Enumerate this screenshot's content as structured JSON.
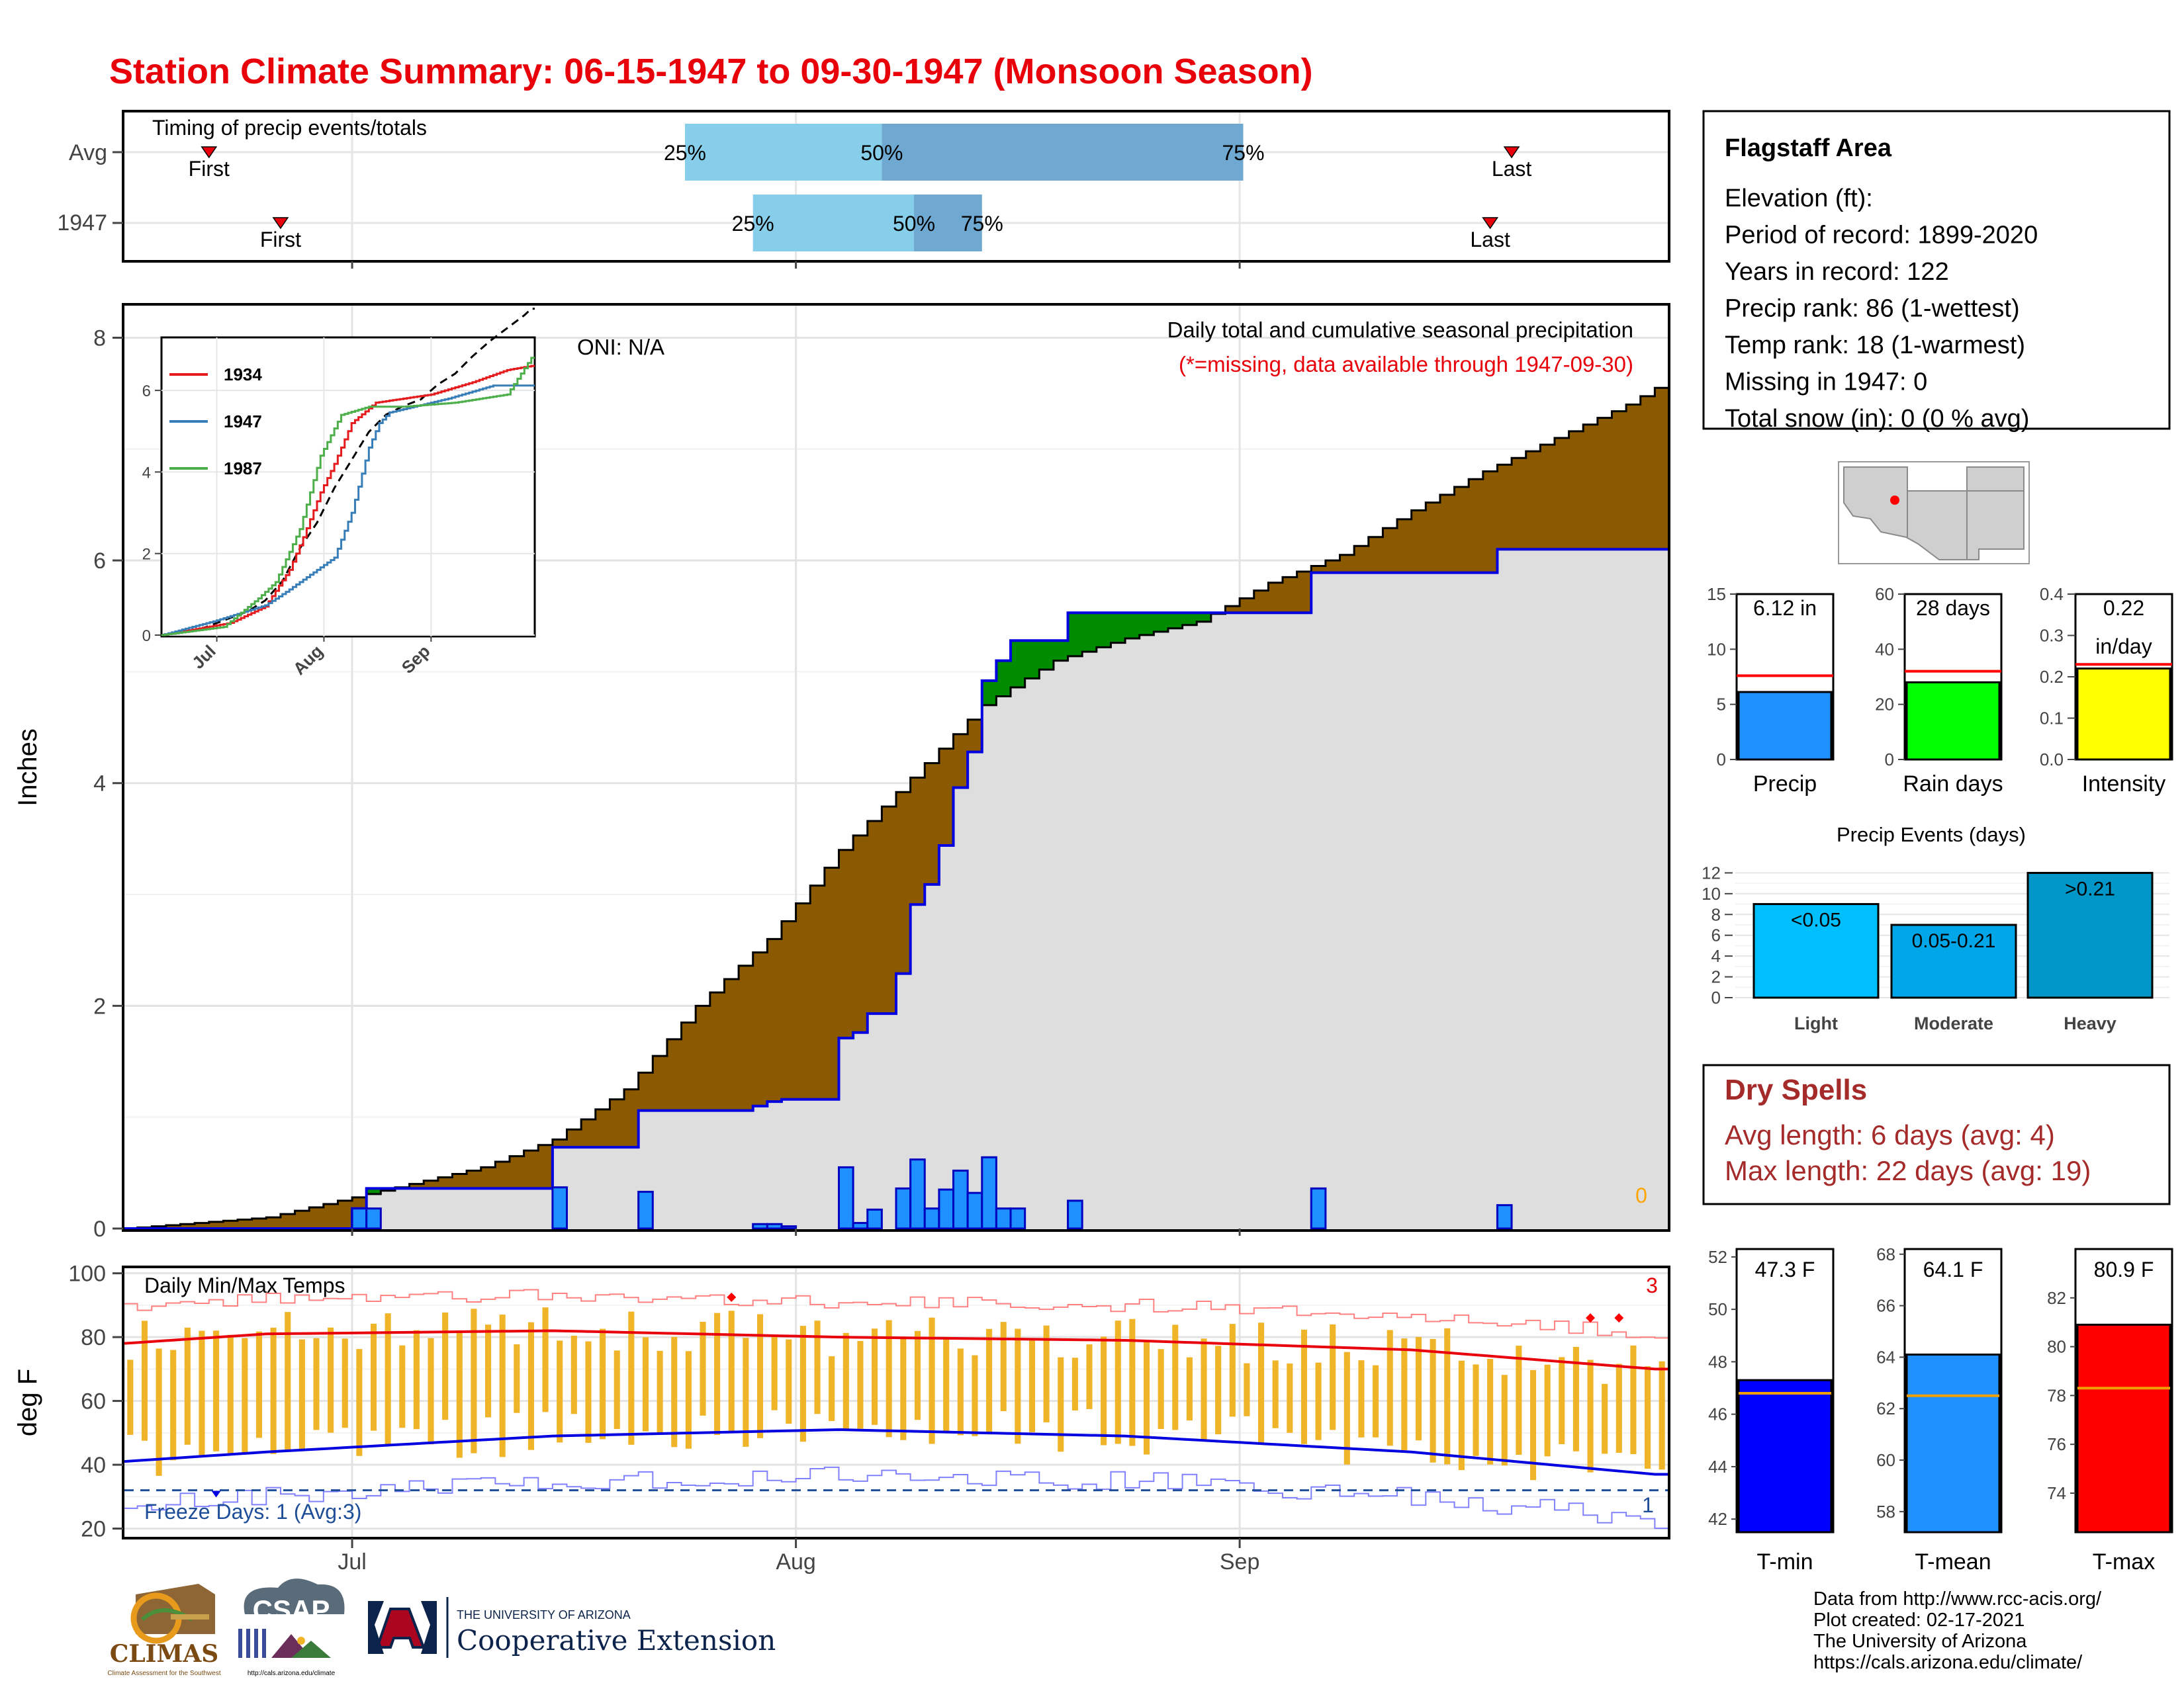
{
  "title": "Station Climate Summary: 06-15-1947 to 09-30-1947 (Monsoon Season)",
  "colors": {
    "title_red": "#e8000b",
    "avg_fill": "#8b5a00",
    "green_fill": "#008c00",
    "grey_fill": "#dedede",
    "blue_line": "#0000e0",
    "bar_blue": "#1e90ff",
    "temp_bar": "#f0b429",
    "tmax_red": "#e8000b",
    "tmin_blue": "#0000e0",
    "dark_red": "#a52a2a"
  },
  "timing_panel": {
    "label": "Timing of precip events/totals",
    "rows": [
      {
        "label": "Avg",
        "first": "First",
        "last": "Last",
        "p25": "25%",
        "p50": "50%",
        "p75": "75%"
      },
      {
        "label": "1947",
        "first": "First",
        "last": "Last",
        "p25": "25%",
        "p50": "50%",
        "p75": "75%"
      }
    ]
  },
  "main_panel": {
    "y_axis_label": "Inches",
    "y_ticks": [
      "0",
      "2",
      "4",
      "6",
      "8"
    ],
    "oni": "ONI: N/A",
    "subtitle": "Daily total and cumulative seasonal precipitation",
    "missing_note": "(*=missing, data available through 1947-09-30)",
    "missing_count": "0",
    "x_ticks": [
      "Jul",
      "Aug",
      "Sep"
    ]
  },
  "inset": {
    "legend": [
      {
        "name": "1934",
        "color": "#e41a1c"
      },
      {
        "name": "1947",
        "color": "#377eb8"
      },
      {
        "name": "1987",
        "color": "#4daf4a"
      }
    ],
    "y_ticks": [
      "0",
      "2",
      "4",
      "6"
    ],
    "x_ticks": [
      "Jul",
      "Aug",
      "Sep"
    ]
  },
  "temp_panel": {
    "y_axis_label": "deg F",
    "label": "Daily Min/Max Temps",
    "y_ticks": [
      "20",
      "40",
      "60",
      "80",
      "100"
    ],
    "max_count": "3",
    "freeze_label": "Freeze Days: 1 (Avg:3)",
    "freeze_count": "1",
    "x_ticks": [
      "Jul",
      "Aug",
      "Sep"
    ]
  },
  "station": {
    "name": "Flagstaff Area",
    "lines": [
      "Elevation (ft):",
      "Period of record: 1899-2020",
      "Years in record: 122",
      "Precip rank: 86 (1-wettest)",
      "Temp rank: 18 (1-warmest)",
      "Missing in 1947: 0",
      "Total snow (in): 0 (0 % avg)"
    ]
  },
  "summary_bars": {
    "precip": {
      "label": "Precip",
      "value_text": "6.12 in",
      "value": 6.12,
      "avg": 7.6,
      "ymax": 15,
      "ticks": [
        "0",
        "5",
        "10",
        "15"
      ],
      "color": "#1e90ff"
    },
    "raindays": {
      "label": "Rain days",
      "value_text": "28 days",
      "value": 28,
      "avg": 32,
      "ymax": 60,
      "ticks": [
        "0",
        "20",
        "40",
        "60"
      ],
      "color": "#00ff00"
    },
    "intensity": {
      "label": "Intensity",
      "value_text": "0.22",
      "value_text2": "in/day",
      "value": 0.22,
      "avg": 0.23,
      "ymax": 0.4,
      "ticks": [
        "0.0",
        "0.1",
        "0.2",
        "0.3",
        "0.4"
      ],
      "color": "#ffff00"
    }
  },
  "events": {
    "title": "Precip Events (days)",
    "ticks": [
      "0",
      "2",
      "4",
      "6",
      "8",
      "10",
      "12"
    ],
    "bars": [
      {
        "label": "Light",
        "range": "<0.05",
        "value": 9,
        "color": "#00bfff"
      },
      {
        "label": "Moderate",
        "range": "0.05-0.21",
        "value": 7,
        "color": "#00a6e8"
      },
      {
        "label": "Heavy",
        "range": ">0.21",
        "value": 12,
        "color": "#0096c7"
      }
    ]
  },
  "dry_spells": {
    "title": "Dry Spells",
    "avg": "Avg length: 6 days (avg: 4)",
    "max": "Max length: 22 days (avg: 19)"
  },
  "temp_bars": {
    "tmin": {
      "label": "T-min",
      "value_text": "47.3 F",
      "value": 47.3,
      "avg": 46.8,
      "ymin": 41.5,
      "ymax": 52.3,
      "ticks": [
        "42",
        "44",
        "46",
        "48",
        "50",
        "52"
      ],
      "color": "#0000ff"
    },
    "tmean": {
      "label": "T-mean",
      "value_text": "64.1 F",
      "value": 64.1,
      "avg": 62.5,
      "ymin": 57.2,
      "ymax": 68.2,
      "ticks": [
        "58",
        "60",
        "62",
        "64",
        "66",
        "68"
      ],
      "color": "#1e90ff"
    },
    "tmax": {
      "label": "T-max",
      "value_text": "80.9 F",
      "value": 80.9,
      "avg": 78.3,
      "ymin": 72.4,
      "ymax": 84.0,
      "ticks": [
        "74",
        "76",
        "78",
        "80",
        "82"
      ],
      "color": "#ff0000"
    }
  },
  "footer": {
    "lines": [
      "Data from http://www.rcc-acis.org/",
      "Plot created: 02-17-2021",
      "The University of Arizona",
      "https://cals.arizona.edu/climate/"
    ],
    "logos": {
      "climas": "CLIMAS",
      "climas_sub": "Climate Assessment for the Southwest",
      "csap": "CSAP",
      "csap_url": "http://cals.arizona.edu/climate",
      "ua_line1": "THE UNIVERSITY OF ARIZONA",
      "ua_line2": "Cooperative Extension"
    }
  },
  "chart_data": {
    "type": "area",
    "title": "Station Climate Summary: 06-15-1947 to 09-30-1947 (Monsoon Season)",
    "x": {
      "start": "1947-06-15",
      "end": "1947-09-30",
      "ticks": [
        "Jul",
        "Aug",
        "Sep"
      ]
    },
    "ylabel": "Inches",
    "ylim": [
      0,
      8.3
    ],
    "grid": true,
    "avg_cumulative_knots": [
      [
        0,
        0
      ],
      [
        10,
        0.1
      ],
      [
        15,
        0.25
      ],
      [
        25,
        0.55
      ],
      [
        30,
        0.8
      ],
      [
        35,
        1.25
      ],
      [
        40,
        2.0
      ],
      [
        45,
        2.6
      ],
      [
        50,
        3.4
      ],
      [
        55,
        4.05
      ],
      [
        60,
        4.7
      ],
      [
        65,
        5.1
      ],
      [
        70,
        5.3
      ],
      [
        75,
        5.45
      ],
      [
        80,
        5.8
      ],
      [
        85,
        6.05
      ],
      [
        90,
        6.45
      ],
      [
        95,
        6.8
      ],
      [
        100,
        7.1
      ],
      [
        105,
        7.4
      ],
      [
        107,
        7.55
      ]
    ],
    "daily_precip_1947": [
      {
        "day": 16,
        "in": 0.18
      },
      {
        "day": 17,
        "in": 0.18
      },
      {
        "day": 30,
        "in": 0.37
      },
      {
        "day": 36,
        "in": 0.33
      },
      {
        "day": 44,
        "in": 0.04
      },
      {
        "day": 45,
        "in": 0.04
      },
      {
        "day": 46,
        "in": 0.02
      },
      {
        "day": 50,
        "in": 0.55
      },
      {
        "day": 51,
        "in": 0.05
      },
      {
        "day": 52,
        "in": 0.17
      },
      {
        "day": 54,
        "in": 0.36
      },
      {
        "day": 55,
        "in": 0.62
      },
      {
        "day": 56,
        "in": 0.18
      },
      {
        "day": 57,
        "in": 0.35
      },
      {
        "day": 58,
        "in": 0.52
      },
      {
        "day": 59,
        "in": 0.32
      },
      {
        "day": 60,
        "in": 0.64
      },
      {
        "day": 61,
        "in": 0.18
      },
      {
        "day": 62,
        "in": 0.18
      },
      {
        "day": 66,
        "in": 0.25
      },
      {
        "day": 83,
        "in": 0.36
      },
      {
        "day": 96,
        "in": 0.21
      }
    ],
    "series": [
      {
        "name": "1934",
        "values": [
          [
            0,
            0
          ],
          [
            20,
            0.3
          ],
          [
            30,
            0.7
          ],
          [
            37,
            1.6
          ],
          [
            41,
            2.4
          ],
          [
            46,
            3.5
          ],
          [
            50,
            4.2
          ],
          [
            55,
            5.2
          ],
          [
            62,
            5.7
          ],
          [
            78,
            5.9
          ],
          [
            90,
            6.2
          ],
          [
            100,
            6.5
          ],
          [
            107,
            6.6
          ]
        ]
      },
      {
        "name": "1947",
        "values": [
          [
            0,
            0
          ],
          [
            16,
            0.36
          ],
          [
            30,
            0.73
          ],
          [
            36,
            1.06
          ],
          [
            50,
            1.9
          ],
          [
            55,
            3.0
          ],
          [
            60,
            4.6
          ],
          [
            63,
            5.2
          ],
          [
            66,
            5.46
          ],
          [
            83,
            5.8
          ],
          [
            96,
            6.12
          ],
          [
            107,
            6.12
          ]
        ]
      },
      {
        "name": "1987",
        "values": [
          [
            0,
            0
          ],
          [
            18,
            0.2
          ],
          [
            28,
            0.9
          ],
          [
            33,
            1.3
          ],
          [
            40,
            2.6
          ],
          [
            46,
            4.4
          ],
          [
            52,
            5.4
          ],
          [
            60,
            5.6
          ],
          [
            70,
            5.6
          ],
          [
            85,
            5.7
          ],
          [
            100,
            5.9
          ],
          [
            107,
            6.8
          ]
        ]
      }
    ],
    "temperature": {
      "ylabel": "deg F",
      "ylim": [
        17,
        102
      ],
      "tmax_avg_knots": [
        [
          0,
          78
        ],
        [
          10,
          81
        ],
        [
          30,
          82
        ],
        [
          50,
          80
        ],
        [
          70,
          79
        ],
        [
          90,
          76
        ],
        [
          107,
          70
        ]
      ],
      "tmin_avg_knots": [
        [
          0,
          41
        ],
        [
          10,
          44
        ],
        [
          30,
          49
        ],
        [
          50,
          51
        ],
        [
          70,
          49
        ],
        [
          90,
          44
        ],
        [
          107,
          37
        ]
      ],
      "freeze_line": 32,
      "freeze_days": 1
    }
  }
}
